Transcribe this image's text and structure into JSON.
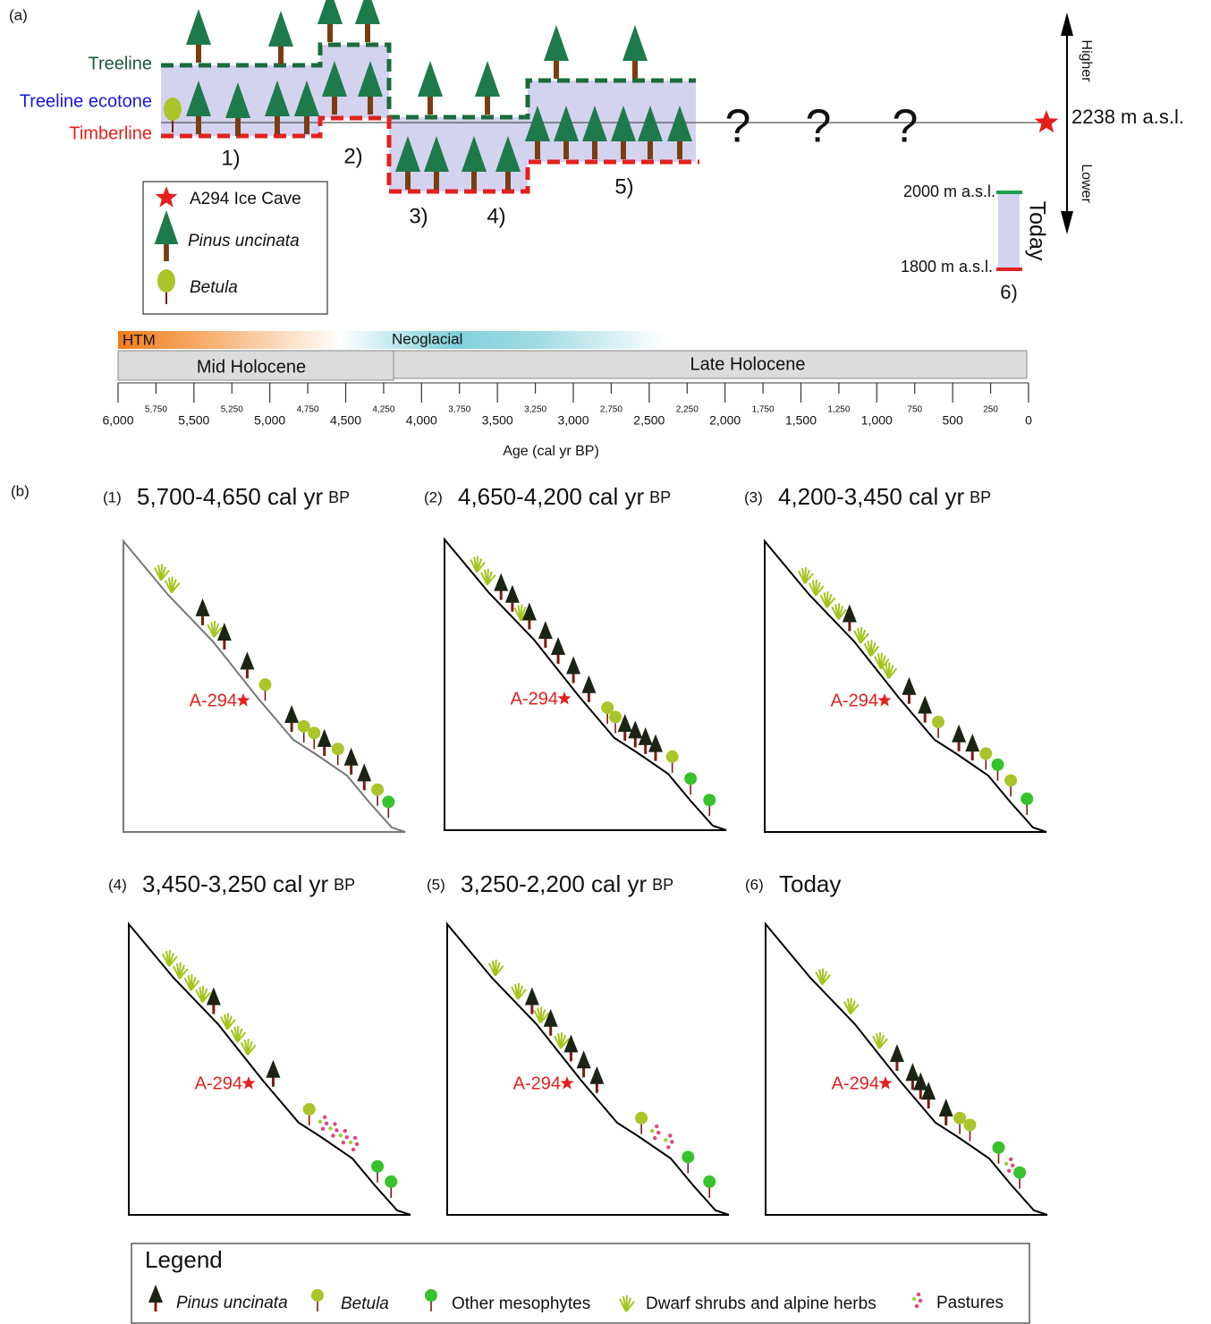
{
  "panel_a": {
    "label": "(a)",
    "lines": {
      "treeline": "Treeline",
      "ecotone": "Treeline ecotone",
      "timberline": "Timberline"
    },
    "periods": [
      "1)",
      "2)",
      "3)",
      "4)",
      "5)"
    ],
    "unknown": [
      "?",
      "?",
      "?"
    ],
    "cave_elevation": "2238 m a.s.l.",
    "direction": {
      "up": "Higher",
      "down": "Lower"
    },
    "today": {
      "label": "Today",
      "top": "2000 m a.s.l.",
      "bottom": "1800 m a.s.l.",
      "period": "6)"
    },
    "legend": [
      "A294 Ice Cave",
      "Pinus uncinata",
      "Betula"
    ]
  },
  "timeline": {
    "phases": [
      "HTM",
      "Neoglacial"
    ],
    "epochs": [
      "Mid Holocene",
      "Late Holocene"
    ],
    "axis_title": "Age (cal yr BP)",
    "xlim": [
      6000,
      0
    ],
    "major_ticks": [
      {
        "value": 6000,
        "label": "6,000"
      },
      {
        "value": 5500,
        "label": "5,500"
      },
      {
        "value": 5000,
        "label": "5,000"
      },
      {
        "value": 4500,
        "label": "4,500"
      },
      {
        "value": 4000,
        "label": "4,000"
      },
      {
        "value": 3500,
        "label": "3,500"
      },
      {
        "value": 3000,
        "label": "3,000"
      },
      {
        "value": 2500,
        "label": "2,500"
      },
      {
        "value": 2000,
        "label": "2,000"
      },
      {
        "value": 1500,
        "label": "1,500"
      },
      {
        "value": 1000,
        "label": "1,000"
      },
      500,
      0
    ],
    "minor_ticks": [
      {
        "value": 5750,
        "label": "5,750"
      },
      {
        "value": 5250,
        "label": "5,250"
      },
      {
        "value": 4750,
        "label": "4,750"
      },
      {
        "value": 4250,
        "label": "4,250"
      },
      {
        "value": 3750,
        "label": "3,750"
      },
      {
        "value": 3250,
        "label": "3,250"
      },
      {
        "value": 2750,
        "label": "2,750"
      },
      {
        "value": 2250,
        "label": "2,250"
      },
      {
        "value": 1750,
        "label": "1,750"
      },
      {
        "value": 1250,
        "label": "1,250"
      },
      750,
      250
    ]
  },
  "panel_b": {
    "label": "(b)",
    "panels": [
      {
        "number": "(1)",
        "title": "5,700-4,650 cal yr",
        "unit": "BP",
        "site": "A-294"
      },
      {
        "number": "(2)",
        "title": "4,650-4,200 cal yr",
        "unit": "BP",
        "site": "A-294"
      },
      {
        "number": "(3)",
        "title": "4,200-3,450 cal yr",
        "unit": "BP",
        "site": "A-294"
      },
      {
        "number": "(4)",
        "title": "3,450-3,250 cal yr",
        "unit": "BP",
        "site": "A-294"
      },
      {
        "number": "(5)",
        "title": "3,250-2,200 cal yr",
        "unit": "BP",
        "site": "A-294"
      },
      {
        "number": "(6)",
        "title": "Today",
        "site": "A-294"
      }
    ],
    "legend": {
      "title": "Legend",
      "items": [
        "Pinus uncinata",
        "Betula",
        "Other mesophytes",
        "Dwarf shrubs and alpine herbs",
        "Pastures"
      ]
    }
  }
}
